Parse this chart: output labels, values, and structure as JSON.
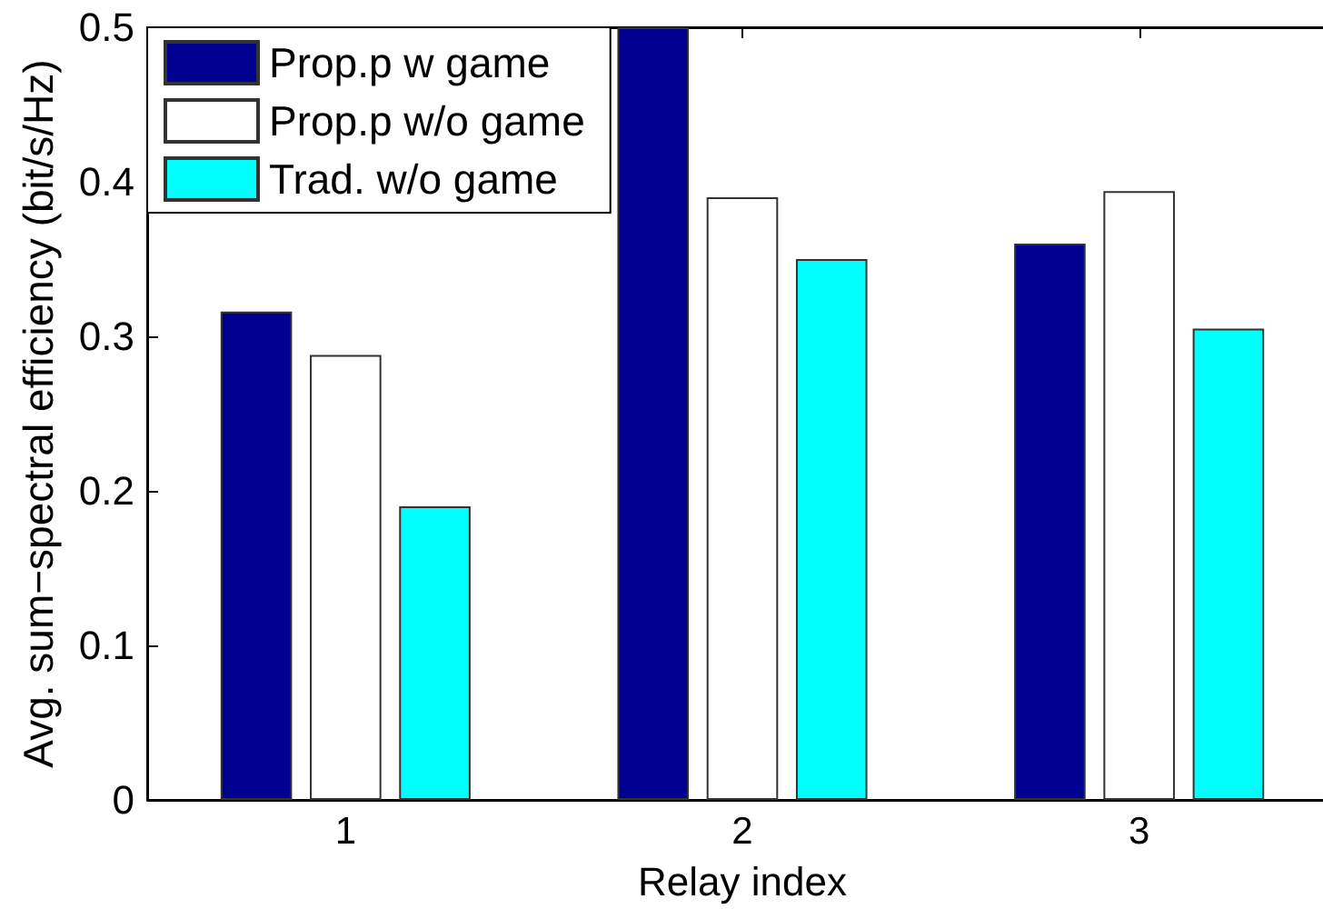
{
  "chart_data": {
    "type": "bar",
    "xlabel": "Relay index",
    "ylabel": "Avg. sum−spectral efficiency (bit/s/Hz)",
    "categories": [
      "1",
      "2",
      "3"
    ],
    "series": [
      {
        "name": "Prop.p w game",
        "color": "#000090",
        "values": [
          0.316,
          0.5,
          0.36
        ]
      },
      {
        "name": "Prop.p w/o game",
        "color": "#ffffff",
        "values": [
          0.288,
          0.39,
          0.394
        ]
      },
      {
        "name": "Trad. w/o game",
        "color": "#00ffff",
        "values": [
          0.19,
          0.35,
          0.305
        ]
      }
    ],
    "ylim": [
      0,
      0.5
    ],
    "yticks": [
      0,
      0.1,
      0.2,
      0.3,
      0.4,
      0.5
    ],
    "grid": false,
    "legend": "top left"
  }
}
